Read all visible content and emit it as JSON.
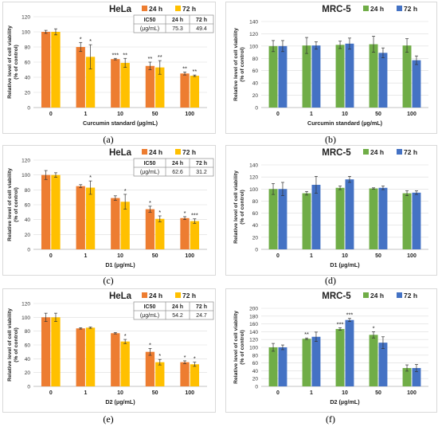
{
  "chart_data": [
    {
      "id": "a",
      "type": "bar",
      "caption": "(a)",
      "title": "HeLa",
      "xlabel": "Curcumin standard (µg/mL)",
      "ylabel": [
        "Relative level of cell viability",
        "(% of control)"
      ],
      "categories": [
        "0",
        "1",
        "10",
        "50",
        "100"
      ],
      "ylim": [
        0,
        120
      ],
      "yticks": [
        0,
        20,
        40,
        60,
        80,
        100,
        120
      ],
      "legend": "top-right",
      "series": [
        {
          "name": "24 h",
          "color": "#ED7D31",
          "values": [
            100,
            80,
            64,
            55,
            45
          ],
          "errors": [
            2,
            6,
            1,
            5,
            2
          ],
          "stars": [
            "",
            "*",
            "***",
            "**",
            "**"
          ]
        },
        {
          "name": "72 h",
          "color": "#FFC000",
          "values": [
            100,
            67,
            59,
            53,
            42
          ],
          "errors": [
            4,
            16,
            6,
            9,
            1
          ],
          "stars": [
            "",
            "*",
            "**",
            "**",
            "**"
          ]
        }
      ],
      "ic50": {
        "header": [
          "IC50",
          "24 h",
          "72 h"
        ],
        "row": [
          "(μg/mL)",
          "75.3",
          "49.4"
        ]
      }
    },
    {
      "id": "b",
      "type": "bar",
      "caption": "(b)",
      "title": "MRC-5",
      "xlabel": "Curcumin standard (µg/mL)",
      "ylabel": [
        "Relative level of cell viability",
        "(% of control)"
      ],
      "categories": [
        "0",
        "1",
        "10",
        "50",
        "100"
      ],
      "ylim": [
        0,
        140
      ],
      "yticks": [
        0,
        20,
        40,
        60,
        80,
        100,
        120,
        140
      ],
      "legend": "top-right",
      "series": [
        {
          "name": "24 h",
          "color": "#70AD47",
          "values": [
            100,
            101,
            102,
            103,
            101
          ],
          "errors": [
            9,
            13,
            6,
            13,
            11
          ],
          "stars": [
            "",
            "",
            "",
            "",
            ""
          ]
        },
        {
          "name": "72 h",
          "color": "#4472C4",
          "values": [
            100,
            101,
            104,
            89,
            77
          ],
          "errors": [
            9,
            6,
            9,
            8,
            7
          ],
          "stars": [
            "",
            "",
            "",
            "",
            ""
          ]
        }
      ]
    },
    {
      "id": "c",
      "type": "bar",
      "caption": "(c)",
      "title": "HeLa",
      "xlabel": "D1 (µg/mL)",
      "ylabel": [
        "Relative level of cell viability",
        "(% of control)"
      ],
      "categories": [
        "0",
        "1",
        "10",
        "50",
        "100"
      ],
      "ylim": [
        0,
        120
      ],
      "yticks": [
        0,
        20,
        40,
        60,
        80,
        100,
        120
      ],
      "legend": "top-right",
      "series": [
        {
          "name": "24 h",
          "color": "#ED7D31",
          "values": [
            100,
            85,
            69,
            54,
            42
          ],
          "errors": [
            6,
            2,
            3,
            4,
            2
          ],
          "stars": [
            "",
            "",
            "",
            "*",
            "*"
          ]
        },
        {
          "name": "72 h",
          "color": "#FFC000",
          "values": [
            100,
            83,
            64,
            41,
            38
          ],
          "errors": [
            3,
            9,
            10,
            4,
            3
          ],
          "stars": [
            "",
            "*",
            "*",
            "*",
            "***"
          ]
        }
      ],
      "ic50": {
        "header": [
          "IC50",
          "24 h",
          "72 h"
        ],
        "row": [
          "(μg/mL)",
          "62.6",
          "31.2"
        ]
      }
    },
    {
      "id": "d",
      "type": "bar",
      "caption": "(d)",
      "title": "MRC-5",
      "xlabel": "D1 (µg/mL)",
      "ylabel": [
        "Relative level of cell viability",
        "(% of control)"
      ],
      "categories": [
        "0",
        "1",
        "10",
        "50",
        "100"
      ],
      "ylim": [
        0,
        140
      ],
      "yticks": [
        0,
        20,
        40,
        60,
        80,
        100,
        120,
        140
      ],
      "legend": "top-right",
      "series": [
        {
          "name": "24 h",
          "color": "#70AD47",
          "values": [
            100,
            93,
            102,
            101,
            93
          ],
          "errors": [
            9,
            3,
            3,
            1,
            4
          ],
          "stars": [
            "",
            "",
            "",
            "",
            ""
          ]
        },
        {
          "name": "72 h",
          "color": "#4472C4",
          "values": [
            100,
            107,
            116,
            102,
            94
          ],
          "errors": [
            11,
            14,
            5,
            3,
            3
          ],
          "stars": [
            "",
            "",
            "",
            "",
            ""
          ]
        }
      ]
    },
    {
      "id": "e",
      "type": "bar",
      "caption": "(e)",
      "title": "HeLa",
      "xlabel": "D2 (µg/mL)",
      "ylabel": [
        "Relative level of cell viability",
        "(% of control)"
      ],
      "categories": [
        "0",
        "1",
        "10",
        "50",
        "100"
      ],
      "ylim": [
        0,
        120
      ],
      "yticks": [
        0,
        20,
        40,
        60,
        80,
        100,
        120
      ],
      "legend": "top-right",
      "series": [
        {
          "name": "24 h",
          "color": "#ED7D31",
          "values": [
            100,
            84,
            77,
            50,
            35
          ],
          "errors": [
            6,
            1,
            1,
            5,
            2
          ],
          "stars": [
            "",
            "",
            "",
            "*",
            "*"
          ]
        },
        {
          "name": "72 h",
          "color": "#FFC000",
          "values": [
            100,
            85,
            65,
            35,
            32
          ],
          "errors": [
            6,
            1,
            3,
            4,
            3
          ],
          "stars": [
            "",
            "",
            "*",
            "*",
            "*"
          ]
        }
      ],
      "ic50": {
        "header": [
          "IC50",
          "24 h",
          "72 h"
        ],
        "row": [
          "(μg/mL)",
          "54.2",
          "24.7"
        ]
      }
    },
    {
      "id": "f",
      "type": "bar",
      "caption": "(f)",
      "title": "MRC-5",
      "xlabel": "D2 (µg/mL)",
      "ylabel": [
        "Relative level of cell viability",
        "(% of control)"
      ],
      "categories": [
        "0",
        "1",
        "10",
        "50",
        "100"
      ],
      "ylim": [
        0,
        200
      ],
      "yticks": [
        0,
        20,
        40,
        60,
        80,
        100,
        120,
        140,
        160,
        180,
        200
      ],
      "legend": "top-right",
      "series": [
        {
          "name": "24 h",
          "color": "#70AD47",
          "values": [
            100,
            122,
            147,
            132,
            47
          ],
          "errors": [
            10,
            2,
            3,
            8,
            8
          ],
          "stars": [
            "",
            "**",
            "***",
            "*",
            ""
          ]
        },
        {
          "name": "72 h",
          "color": "#4472C4",
          "values": [
            100,
            127,
            170,
            112,
            47
          ],
          "errors": [
            6,
            12,
            4,
            15,
            9
          ],
          "stars": [
            "",
            "",
            "***",
            "",
            ""
          ]
        }
      ]
    }
  ]
}
